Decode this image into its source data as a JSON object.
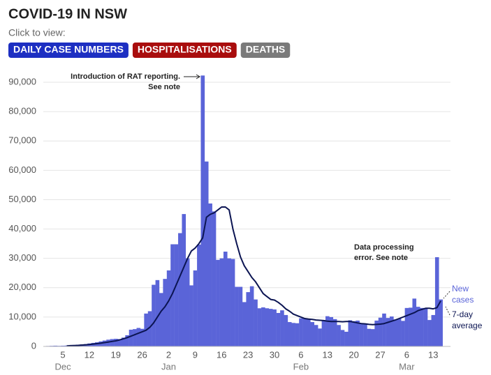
{
  "header": {
    "title": "COVID-19 IN NSW",
    "prompt": "Click to view:",
    "buttons": [
      {
        "label": "DAILY CASE NUMBERS",
        "color": "#1d2fc2"
      },
      {
        "label": "HOSPITALISATIONS",
        "color": "#a90d0d"
      },
      {
        "label": "DEATHS",
        "color": "#7a7a7a"
      }
    ]
  },
  "chart_data": {
    "type": "bar",
    "categories": [
      null,
      null,
      null,
      null,
      "5",
      null,
      null,
      null,
      null,
      null,
      null,
      "12",
      null,
      null,
      null,
      null,
      null,
      null,
      "19",
      null,
      null,
      null,
      null,
      null,
      null,
      "26",
      null,
      null,
      null,
      null,
      null,
      null,
      "2",
      null,
      null,
      null,
      null,
      null,
      null,
      "9",
      null,
      null,
      null,
      null,
      null,
      null,
      "16",
      null,
      null,
      null,
      null,
      null,
      null,
      "23",
      null,
      null,
      null,
      null,
      null,
      null,
      "30",
      null,
      null,
      null,
      null,
      null,
      null,
      "6",
      null,
      null,
      null,
      null,
      null,
      null,
      "13",
      null,
      null,
      null,
      null,
      null,
      null,
      "20",
      null,
      null,
      null,
      null,
      null,
      null,
      "27",
      null,
      null,
      null,
      null,
      null,
      null,
      "6",
      null,
      null,
      null,
      null,
      null,
      null,
      "13",
      null,
      null
    ],
    "month_labels": [
      null,
      null,
      null,
      null,
      "Dec",
      null,
      null,
      null,
      null,
      null,
      null,
      null,
      null,
      null,
      null,
      null,
      null,
      null,
      null,
      null,
      null,
      null,
      null,
      null,
      null,
      null,
      null,
      null,
      null,
      null,
      null,
      null,
      "Jan",
      null,
      null,
      null,
      null,
      null,
      null,
      null,
      null,
      null,
      null,
      null,
      null,
      null,
      null,
      null,
      null,
      null,
      null,
      null,
      null,
      null,
      null,
      null,
      null,
      null,
      null,
      null,
      null,
      null,
      null,
      null,
      null,
      null,
      null,
      "Feb",
      null,
      null,
      null,
      null,
      null,
      null,
      null,
      null,
      null,
      null,
      null,
      null,
      null,
      null,
      null,
      null,
      null,
      null,
      null,
      null,
      null,
      null,
      null,
      null,
      null,
      null,
      null,
      "Mar",
      null,
      null,
      null,
      null,
      null,
      null,
      null,
      null,
      null
    ],
    "series": [
      {
        "name": "New cases",
        "legend_lines": [
          "New",
          "cases"
        ],
        "color": "#5a64d8",
        "values": [
          150,
          200,
          250,
          200,
          250,
          300,
          400,
          500,
          600,
          700,
          800,
          1000,
          1200,
          1400,
          1700,
          2000,
          2300,
          2500,
          2600,
          2500,
          3000,
          3800,
          5700,
          5900,
          6300,
          6000,
          11200,
          12000,
          21000,
          22600,
          18200,
          23000,
          25900,
          34800,
          34800,
          38600,
          45100,
          30000,
          20800,
          25900,
          34700,
          92300,
          63000,
          48700,
          46000,
          29500,
          30000,
          32300,
          30000,
          29800,
          20300,
          20300,
          15100,
          18500,
          20500,
          16000,
          13000,
          13300,
          13000,
          12800,
          12600,
          11400,
          12300,
          10700,
          8300,
          8000,
          7900,
          9600,
          9600,
          9300,
          8300,
          7300,
          6100,
          9000,
          10300,
          10000,
          9300,
          7300,
          5600,
          5000,
          8900,
          8600,
          8800,
          7900,
          7500,
          6000,
          5900,
          8800,
          9800,
          11200,
          9700,
          10200,
          9200,
          9500,
          8700,
          13100,
          13200,
          16300,
          13500,
          13100,
          13100,
          9000,
          10700,
          30400,
          16000
        ]
      },
      {
        "name": "7-day average",
        "legend_lines": [
          "7-day",
          "average"
        ],
        "type": "line",
        "color": "#0b1452",
        "values": [
          null,
          null,
          null,
          null,
          null,
          200,
          250,
          300,
          350,
          450,
          550,
          650,
          800,
          950,
          1100,
          1300,
          1500,
          1700,
          1900,
          2200,
          2600,
          3000,
          3500,
          4000,
          4500,
          5000,
          5500,
          6500,
          8000,
          10000,
          12000,
          13500,
          15500,
          18000,
          21000,
          24000,
          27000,
          30000,
          32500,
          33500,
          35000,
          37000,
          44000,
          45000,
          45500,
          46500,
          47500,
          47500,
          46500,
          40000,
          35000,
          30500,
          27500,
          25500,
          23500,
          22000,
          20000,
          18000,
          17000,
          16000,
          15800,
          15000,
          14000,
          12800,
          12000,
          11000,
          10500,
          10000,
          9500,
          9300,
          9200,
          9000,
          8900,
          8800,
          8600,
          8500,
          8500,
          8500,
          8400,
          8500,
          8500,
          8300,
          8000,
          7800,
          7700,
          7500,
          7400,
          7500,
          7600,
          7800,
          8200,
          8600,
          9000,
          9500,
          10000,
          10500,
          11000,
          11500,
          12200,
          12600,
          13000,
          13000,
          12800,
          13200,
          15500
        ]
      }
    ],
    "ylim": [
      0,
      92500
    ],
    "yticks": [
      0,
      {
        "value": 10000,
        "label": "10,000"
      },
      {
        "value": 20000,
        "label": "20,000"
      },
      {
        "value": 30000,
        "label": "30,000"
      },
      {
        "value": 40000,
        "label": "40,000"
      },
      {
        "value": 50000,
        "label": "50,000"
      },
      {
        "value": 60000,
        "label": "60,000"
      },
      {
        "value": 70000,
        "label": "70,000"
      },
      {
        "value": 80000,
        "label": "80,000"
      },
      {
        "value": 90000,
        "label": "90,000"
      }
    ],
    "grid": true,
    "annotations": [
      {
        "lines": [
          "Introduction of RAT reporting.",
          "See note"
        ]
      },
      {
        "lines": [
          "Data processing",
          "error. See note"
        ]
      }
    ]
  }
}
